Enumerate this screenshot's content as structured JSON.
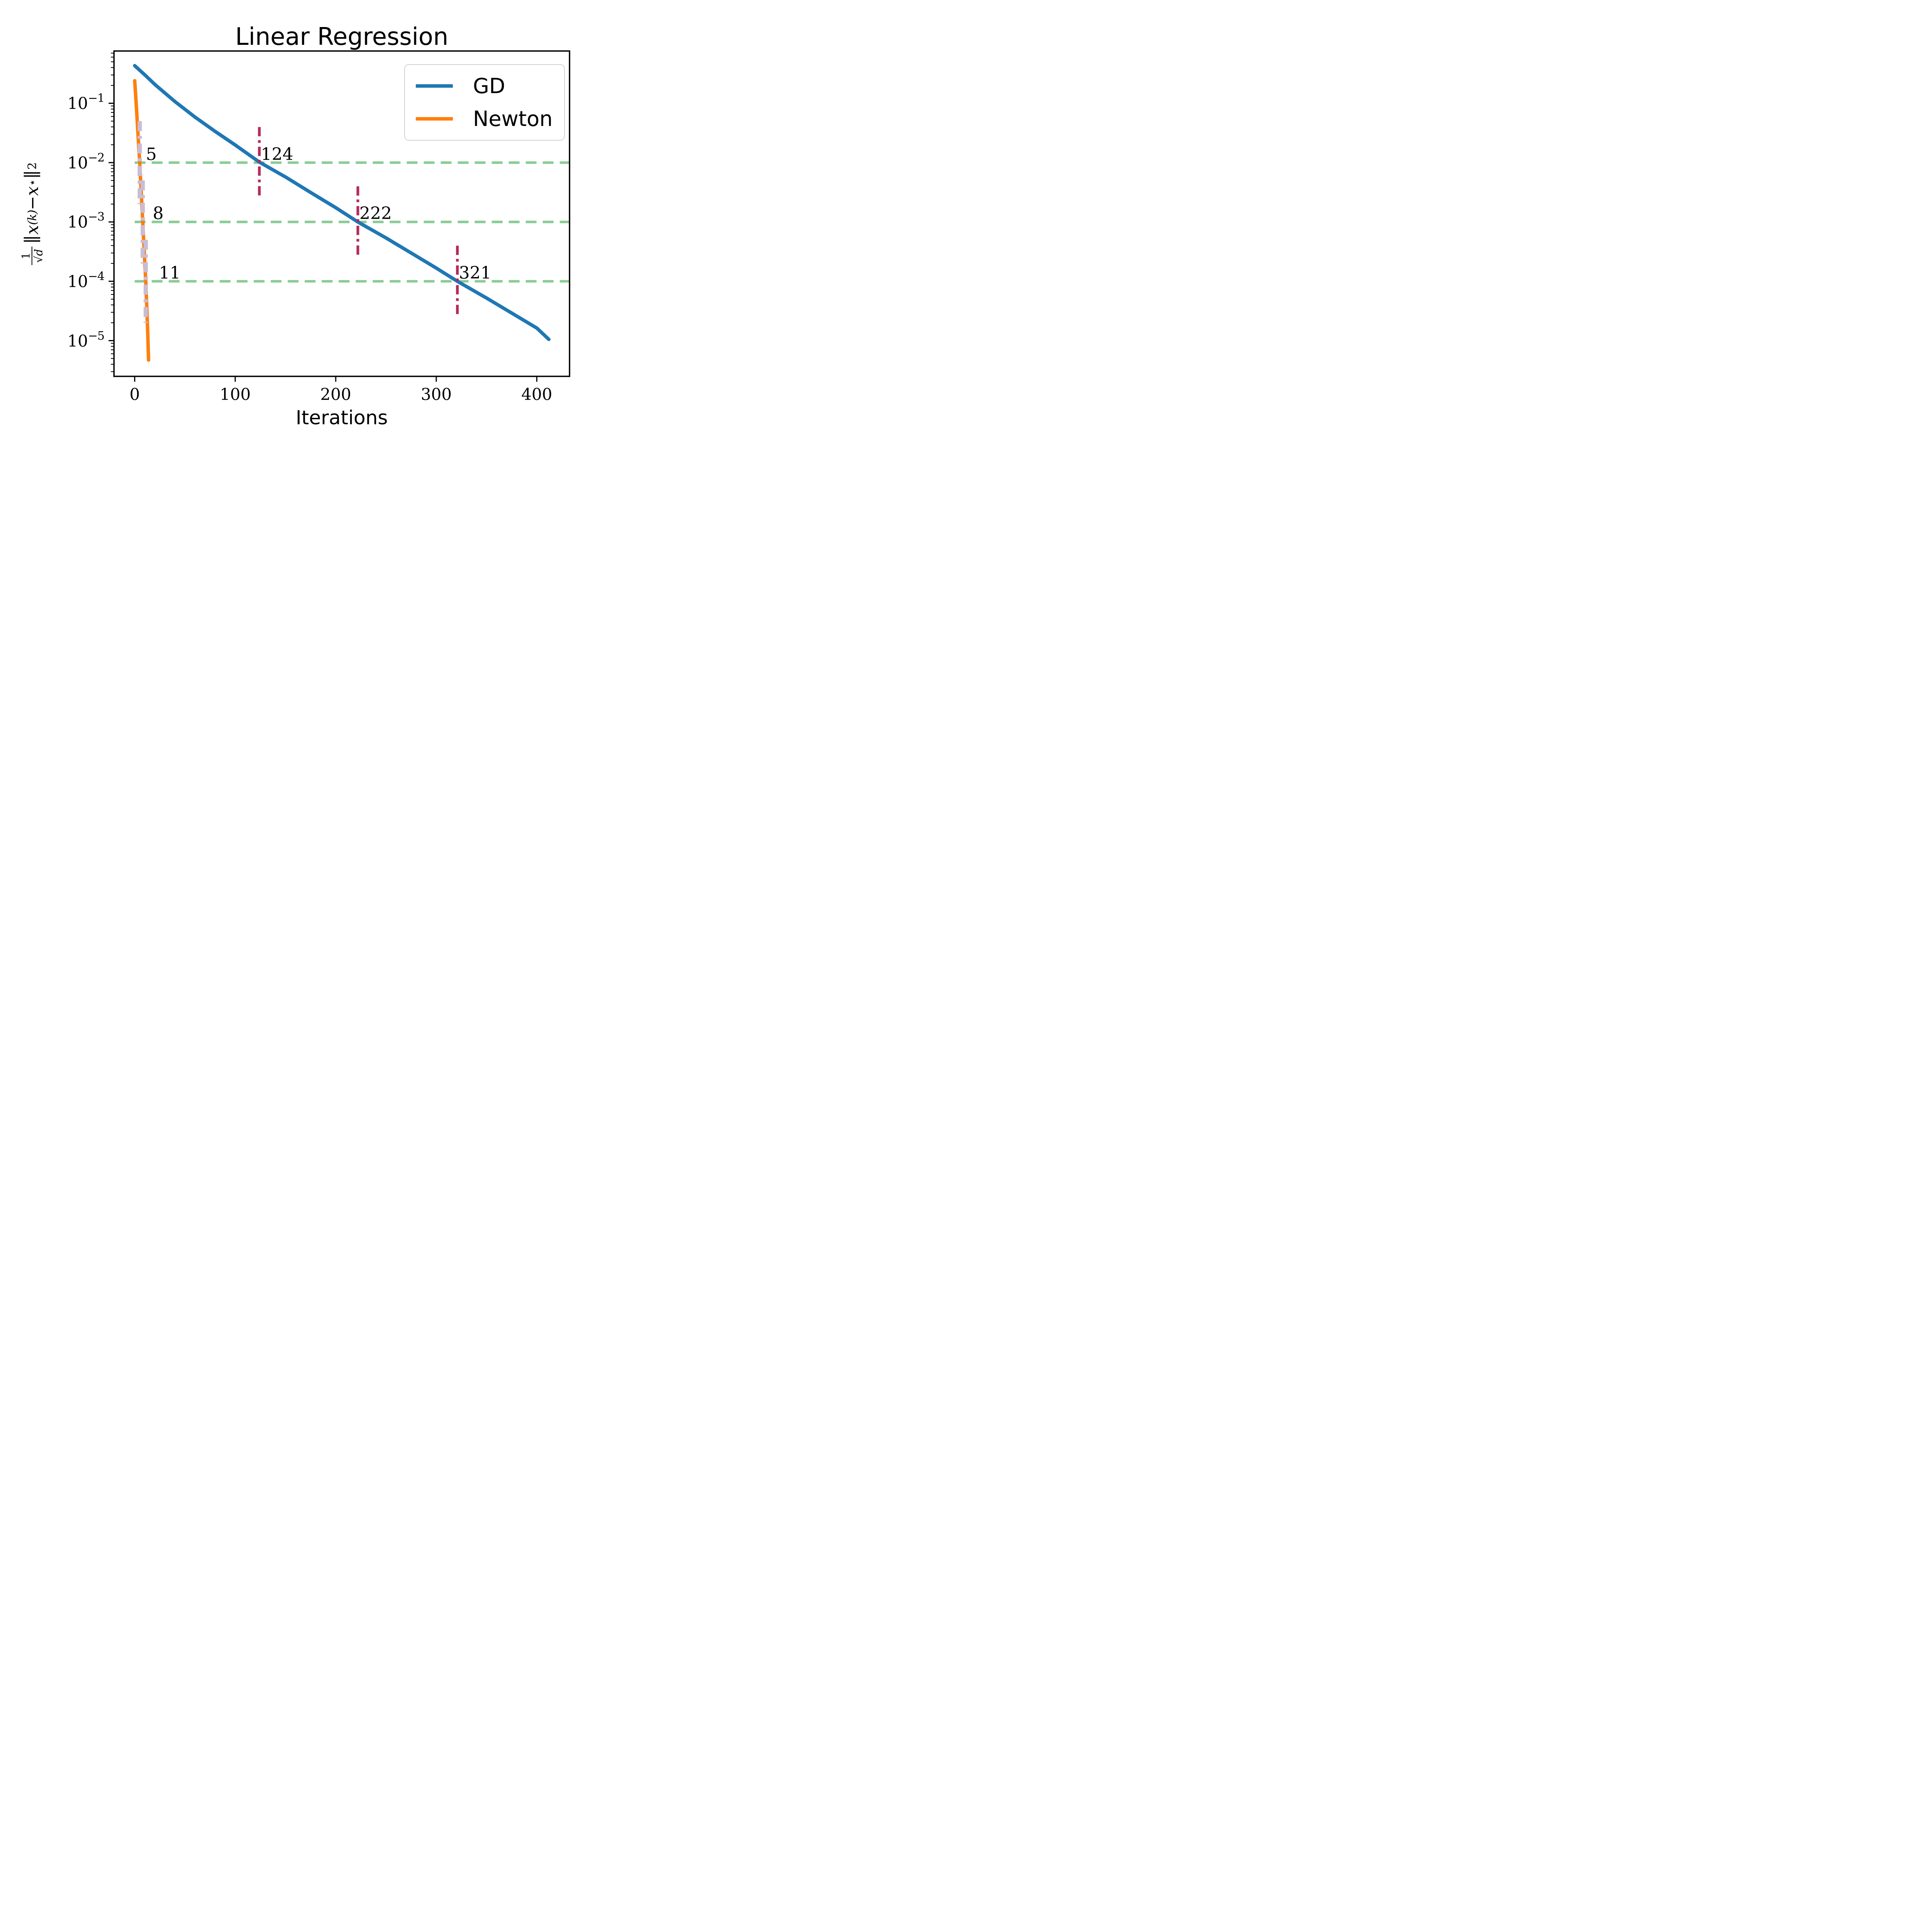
{
  "figure": {
    "title": "Linear Regression",
    "xlabel": "Iterations",
    "ylabel": {
      "num": "1",
      "rad": "√",
      "rand": "d",
      "norm": "∥",
      "norm2": "∥",
      "var": "x",
      "var2": "x",
      "sup_k": "(k)",
      "minus": " − ",
      "star": "⋆",
      "sub": "2"
    },
    "legend": {
      "entries": [
        {
          "label": "GD",
          "color": "#1f77b4"
        },
        {
          "label": "Newton",
          "color": "#ff7f0e"
        }
      ]
    }
  },
  "chart_data": {
    "type": "line",
    "title": "Linear Regression",
    "xlabel": "Iterations",
    "ylabel": "(1/sqrt(d))·||x^(k) − x*||_2",
    "yscale": "log",
    "grid": false,
    "legend_position": "upper right",
    "xlim": [
      -20.6,
      432.6
    ],
    "ylim": [
      2.5e-06,
      0.76
    ],
    "x_ticks": [
      0,
      100,
      200,
      300,
      400
    ],
    "y_ticks": [
      {
        "base": "10",
        "exp": "−1",
        "value": 0.1
      },
      {
        "base": "10",
        "exp": "−2",
        "value": 0.01
      },
      {
        "base": "10",
        "exp": "−3",
        "value": 0.001
      },
      {
        "base": "10",
        "exp": "−4",
        "value": 0.0001
      },
      {
        "base": "10",
        "exp": "−5",
        "value": 1e-05
      }
    ],
    "minor_ticks_per_decade": [
      2,
      3,
      4,
      5,
      6,
      7,
      8,
      9
    ],
    "series": [
      {
        "name": "GD",
        "color": "#1f77b4",
        "x": [
          0,
          10,
          20,
          40,
          60,
          80,
          100,
          124,
          150,
          175,
          200,
          222,
          250,
          275,
          300,
          321,
          350,
          375,
          400,
          412
        ],
        "y": [
          0.43,
          0.302,
          0.208,
          0.107,
          0.0585,
          0.0336,
          0.0198,
          0.0102,
          0.00573,
          0.00314,
          0.00174,
          0.001,
          0.000538,
          0.0003,
          0.000167,
          0.0001,
          5.22e-05,
          2.92e-05,
          1.63e-05,
          1.05e-05
        ]
      },
      {
        "name": "Newton",
        "color": "#ff7f0e",
        "x": [
          0,
          1,
          2,
          3,
          4,
          5,
          6,
          7,
          8,
          9,
          10,
          11,
          12,
          13,
          13.8
        ],
        "y": [
          0.24,
          0.133,
          0.0708,
          0.0363,
          0.0191,
          0.01,
          0.00468,
          0.00214,
          0.001,
          0.000468,
          0.000214,
          0.0001,
          3.8e-05,
          1.32e-05,
          4.7e-06
        ]
      }
    ],
    "threshold_lines": {
      "color": "#8acc94",
      "style": "dashed",
      "dash": "28 16",
      "width": 6.5,
      "values": [
        0.01,
        0.001,
        0.0001
      ]
    },
    "crossing_markers": [
      {
        "series": "Newton",
        "color": "#c9bdd3",
        "width": 11,
        "dash": "26 12 8 12",
        "span_decades": 0.7,
        "points": [
          {
            "x": 5,
            "y": 0.01
          },
          {
            "x": 8,
            "y": 0.001
          },
          {
            "x": 11,
            "y": 0.0001
          }
        ]
      },
      {
        "series": "GD",
        "color": "#b52b5c",
        "width": 7,
        "dash": "24 10 7 10",
        "span_decades": 0.6,
        "points": [
          {
            "x": 124,
            "y": 0.01
          },
          {
            "x": 222,
            "y": 0.001
          },
          {
            "x": 321,
            "y": 0.0001
          }
        ]
      }
    ],
    "annotations": [
      {
        "text": "5",
        "x": 5,
        "y": 0.01,
        "dx": 16
      },
      {
        "text": "8",
        "x": 8,
        "y": 0.001,
        "dx": 26
      },
      {
        "text": "11",
        "x": 11,
        "y": 0.0001,
        "dx": 34
      },
      {
        "text": "124",
        "x": 124,
        "y": 0.01,
        "dx": 4
      },
      {
        "text": "222",
        "x": 222,
        "y": 0.001,
        "dx": 4
      },
      {
        "text": "321",
        "x": 321,
        "y": 0.0001,
        "dx": 4
      }
    ],
    "layout": {
      "plot": {
        "l": 295,
        "t": 132,
        "r": 1474,
        "b": 974
      },
      "colors": {
        "spine": "#000000",
        "text": "#000000",
        "legend_border": "#d2d2d2"
      }
    }
  }
}
